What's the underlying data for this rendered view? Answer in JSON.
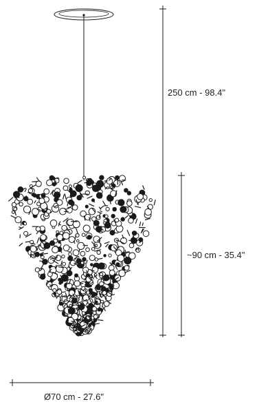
{
  "dimensions": {
    "total_height": "250 cm - 98.4\"",
    "body_height": "~90 cm - 35.4\"",
    "diameter": "Ø70 cm - 27.6\""
  },
  "colors": {
    "line": "#1a1a1a",
    "fill": "#ffffff"
  }
}
